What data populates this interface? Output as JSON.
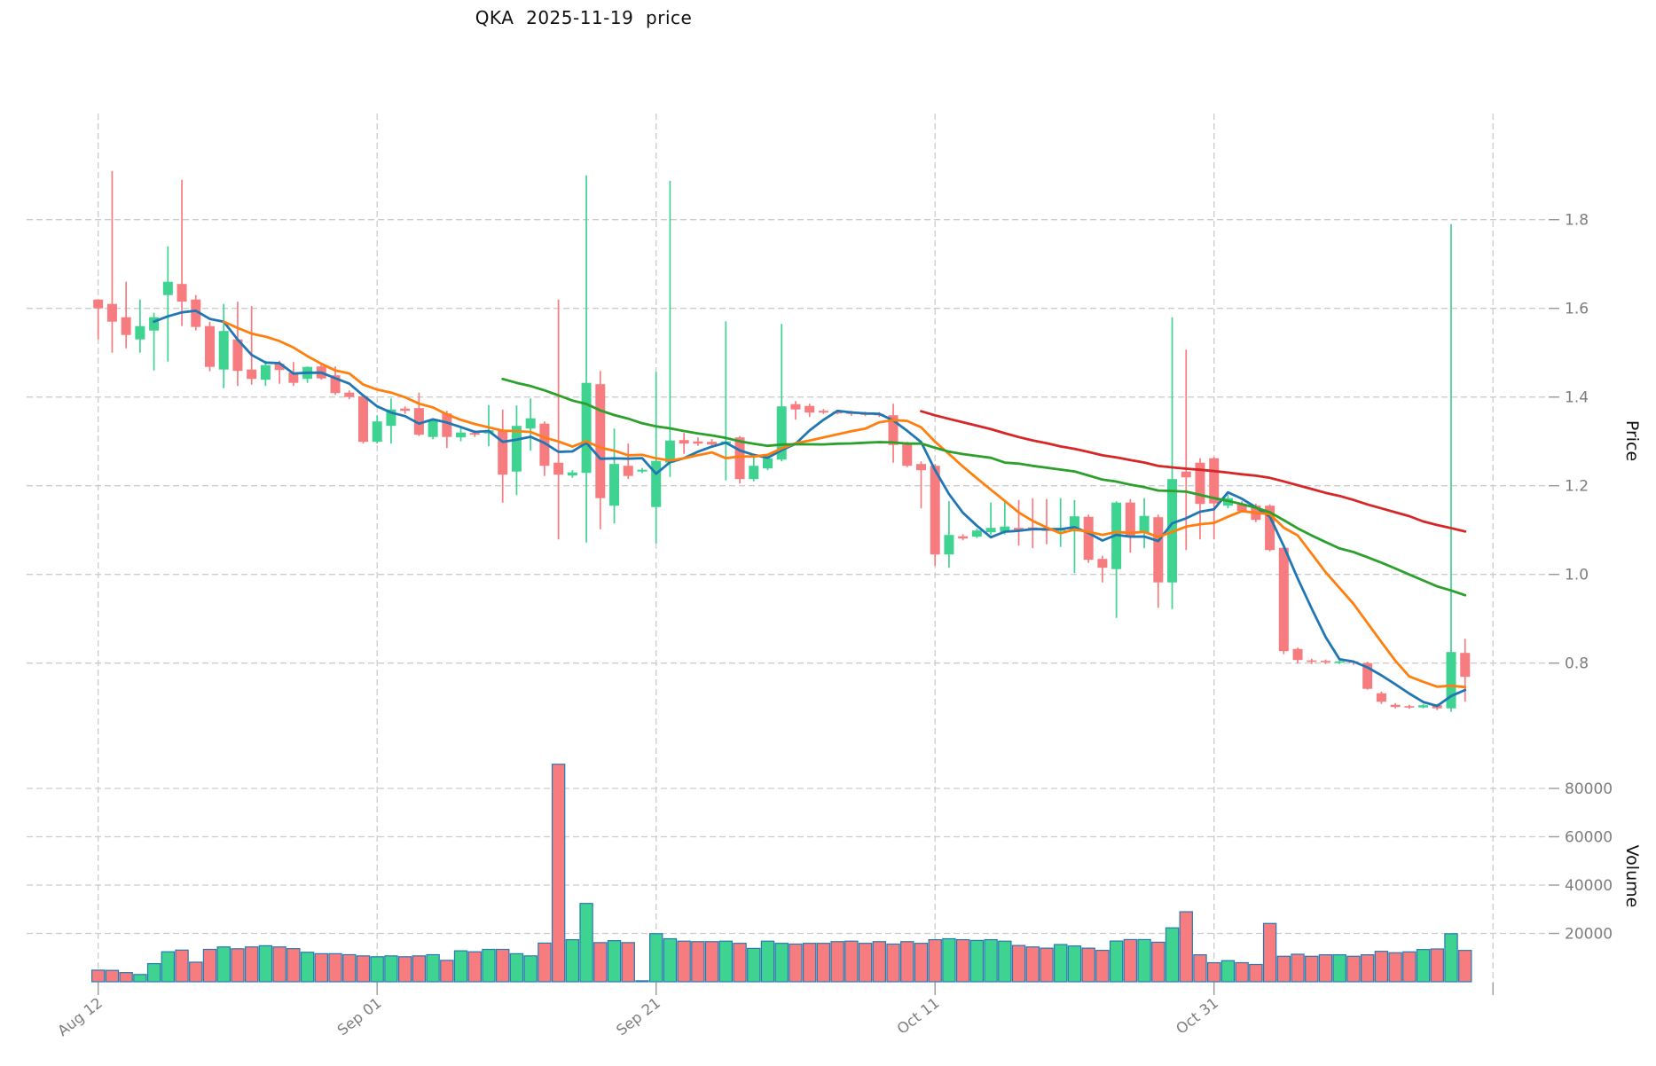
{
  "title": "QKA  2025-11-19  price",
  "chart_data": {
    "type": "candlestick",
    "title": "QKA  2025-11-19  price",
    "legend_position": "none",
    "grid": true,
    "price_axis": {
      "label": "Price",
      "side": "right",
      "ticks": [
        1.8,
        1.6,
        1.4,
        1.2,
        1.0,
        0.8
      ],
      "range": [
        0.65,
        1.95
      ]
    },
    "volume_axis": {
      "label": "Volume",
      "side": "right",
      "ticks": [
        20000,
        40000,
        60000,
        80000
      ],
      "range": [
        0,
        95000
      ]
    },
    "x_ticks": [
      {
        "index": 0,
        "label": "Aug 12"
      },
      {
        "index": 20,
        "label": "Sep 01"
      },
      {
        "index": 40,
        "label": "Sep 21"
      },
      {
        "index": 60,
        "label": "Oct 11"
      },
      {
        "index": 80,
        "label": "Oct 31"
      },
      {
        "index": 100,
        "label": ""
      }
    ],
    "ma_lines": [
      {
        "name": "MA5",
        "window": 5,
        "color": "#1f77b4"
      },
      {
        "name": "MA10",
        "window": 10,
        "color": "#ff7f0e"
      },
      {
        "name": "MA30",
        "window": 30,
        "color": "#2ca02c"
      },
      {
        "name": "MA60",
        "window": 60,
        "color": "#d62728"
      }
    ],
    "colors": {
      "up": "#3fd391",
      "down": "#f67c80",
      "volume_edge": "#2779b0",
      "grid": "#cccccc",
      "tick_label": "#7d7d7d",
      "title": "#111111"
    },
    "columns": [
      "date",
      "open",
      "high",
      "low",
      "close",
      "volume"
    ],
    "candles": [
      [
        "Aug 12",
        1.62,
        1.62,
        1.53,
        1.6,
        4800
      ],
      [
        "Aug 13",
        1.61,
        1.91,
        1.5,
        1.57,
        4700
      ],
      [
        "Aug 14",
        1.58,
        1.66,
        1.51,
        1.54,
        3800
      ],
      [
        "Aug 15",
        1.53,
        1.62,
        1.5,
        1.56,
        3000
      ],
      [
        "Aug 16",
        1.55,
        1.59,
        1.46,
        1.58,
        7500
      ],
      [
        "Aug 17",
        1.63,
        1.74,
        1.48,
        1.66,
        12400
      ],
      [
        "Aug 18",
        1.655,
        1.89,
        1.56,
        1.615,
        13100
      ],
      [
        "Aug 19",
        1.62,
        1.63,
        1.55,
        1.558,
        8100
      ],
      [
        "Aug 20",
        1.56,
        1.57,
        1.458,
        1.468,
        13400
      ],
      [
        "Aug 21",
        1.462,
        1.61,
        1.42,
        1.549,
        14400
      ],
      [
        "Aug 22",
        1.53,
        1.615,
        1.425,
        1.459,
        13650
      ],
      [
        "Aug 23",
        1.462,
        1.605,
        1.428,
        1.441,
        14400
      ],
      [
        "Aug 24",
        1.439,
        1.482,
        1.425,
        1.472,
        14900
      ],
      [
        "Aug 25",
        1.475,
        1.482,
        1.43,
        1.461,
        14400
      ],
      [
        "Aug 26",
        1.455,
        1.479,
        1.425,
        1.432,
        13700
      ],
      [
        "Aug 27",
        1.441,
        1.469,
        1.432,
        1.468,
        12200
      ],
      [
        "Aug 28",
        1.469,
        1.475,
        1.439,
        1.442,
        11600
      ],
      [
        "Aug 29",
        1.449,
        1.469,
        1.405,
        1.409,
        11600
      ],
      [
        "Aug 30",
        1.41,
        1.415,
        1.395,
        1.4,
        11200
      ],
      [
        "Aug 31",
        1.402,
        1.405,
        1.295,
        1.299,
        10700
      ],
      [
        "Sep 01",
        1.299,
        1.359,
        1.295,
        1.345,
        10350
      ],
      [
        "Sep 02",
        1.335,
        1.397,
        1.295,
        1.372,
        10700
      ],
      [
        "Sep 03",
        1.374,
        1.379,
        1.362,
        1.369,
        10350
      ],
      [
        "Sep 04",
        1.375,
        1.41,
        1.312,
        1.315,
        10700
      ],
      [
        "Sep 05",
        1.31,
        1.352,
        1.305,
        1.347,
        11200
      ],
      [
        "Sep 06",
        1.363,
        1.369,
        1.285,
        1.31,
        8850
      ],
      [
        "Sep 07",
        1.309,
        1.329,
        1.3,
        1.32,
        12800
      ],
      [
        "Sep 08",
        1.319,
        1.325,
        1.31,
        1.315,
        12400
      ],
      [
        "Sep 09",
        1.318,
        1.382,
        1.289,
        1.325,
        13400
      ],
      [
        "Sep 10",
        1.325,
        1.372,
        1.162,
        1.225,
        13400
      ],
      [
        "Sep 11",
        1.232,
        1.381,
        1.179,
        1.335,
        11600
      ],
      [
        "Sep 12",
        1.329,
        1.397,
        1.279,
        1.352,
        10700
      ],
      [
        "Sep 13",
        1.34,
        1.345,
        1.222,
        1.245,
        16000
      ],
      [
        "Sep 14",
        1.252,
        1.62,
        1.079,
        1.225,
        90000
      ],
      [
        "Sep 15",
        1.223,
        1.235,
        1.218,
        1.23,
        17400
      ],
      [
        "Sep 16",
        1.229,
        1.9,
        1.072,
        1.432,
        32400
      ],
      [
        "Sep 17",
        1.429,
        1.459,
        1.102,
        1.172,
        16200
      ],
      [
        "Sep 18",
        1.155,
        1.329,
        1.115,
        1.249,
        17000
      ],
      [
        "Sep 19",
        1.245,
        1.295,
        1.215,
        1.222,
        16200
      ],
      [
        "Sep 20",
        1.232,
        1.24,
        1.228,
        1.236,
        400
      ],
      [
        "Sep 21",
        1.152,
        1.457,
        1.07,
        1.256,
        19900
      ],
      [
        "Sep 22",
        1.252,
        1.888,
        1.22,
        1.302,
        17800
      ],
      [
        "Sep 23",
        1.303,
        1.319,
        1.272,
        1.295,
        16800
      ],
      [
        "Sep 24",
        1.3,
        1.309,
        1.29,
        1.295,
        16600
      ],
      [
        "Sep 25",
        1.299,
        1.305,
        1.288,
        1.293,
        16600
      ],
      [
        "Sep 26",
        1.295,
        1.571,
        1.212,
        1.3,
        16800
      ],
      [
        "Sep 27",
        1.309,
        1.312,
        1.205,
        1.215,
        15900
      ],
      [
        "Sep 28",
        1.215,
        1.269,
        1.21,
        1.245,
        13800
      ],
      [
        "Sep 29",
        1.239,
        1.27,
        1.235,
        1.262,
        16800
      ],
      [
        "Sep 30",
        1.259,
        1.565,
        1.255,
        1.379,
        15900
      ],
      [
        "Oct 01",
        1.384,
        1.391,
        1.349,
        1.372,
        15600
      ],
      [
        "Oct 02",
        1.38,
        1.385,
        1.355,
        1.365,
        15900
      ],
      [
        "Oct 03",
        1.369,
        1.373,
        1.362,
        1.365,
        15900
      ],
      [
        "Oct 04",
        1.367,
        1.371,
        1.361,
        1.363,
        16600
      ],
      [
        "Oct 05",
        1.365,
        1.369,
        1.358,
        1.362,
        16800
      ],
      [
        "Oct 06",
        1.363,
        1.367,
        1.357,
        1.361,
        15900
      ],
      [
        "Oct 07",
        1.362,
        1.366,
        1.355,
        1.359,
        16600
      ],
      [
        "Oct 08",
        1.359,
        1.385,
        1.252,
        1.292,
        15600
      ],
      [
        "Oct 09",
        1.295,
        1.299,
        1.242,
        1.245,
        16600
      ],
      [
        "Oct 10",
        1.249,
        1.255,
        1.149,
        1.235,
        15900
      ],
      [
        "Oct 11",
        1.245,
        1.249,
        1.019,
        1.045,
        17400
      ],
      [
        "Oct 12",
        1.045,
        1.165,
        1.015,
        1.089,
        17800
      ],
      [
        "Oct 13",
        1.086,
        1.091,
        1.077,
        1.081,
        17400
      ],
      [
        "Oct 14",
        1.085,
        1.103,
        1.082,
        1.099,
        17100
      ],
      [
        "Oct 15",
        1.095,
        1.162,
        1.09,
        1.105,
        17400
      ],
      [
        "Oct 16",
        1.096,
        1.164,
        1.09,
        1.108,
        16800
      ],
      [
        "Oct 17",
        1.105,
        1.168,
        1.065,
        1.099,
        15000
      ],
      [
        "Oct 18",
        1.106,
        1.172,
        1.059,
        1.1,
        14400
      ],
      [
        "Oct 19",
        1.103,
        1.17,
        1.068,
        1.098,
        13900
      ],
      [
        "Oct 20",
        1.098,
        1.172,
        1.062,
        1.105,
        15400
      ],
      [
        "Oct 21",
        1.097,
        1.168,
        1.003,
        1.131,
        14800
      ],
      [
        "Oct 22",
        1.13,
        1.135,
        1.026,
        1.033,
        13900
      ],
      [
        "Oct 23",
        1.035,
        1.042,
        0.982,
        1.015,
        13000
      ],
      [
        "Oct 24",
        1.012,
        1.165,
        0.902,
        1.162,
        16850
      ],
      [
        "Oct 25",
        1.162,
        1.17,
        1.049,
        1.085,
        17450
      ],
      [
        "Oct 26",
        1.095,
        1.172,
        1.059,
        1.132,
        17450
      ],
      [
        "Oct 27",
        1.129,
        1.135,
        0.925,
        0.982,
        16360
      ],
      [
        "Oct 28",
        0.982,
        1.58,
        0.922,
        1.215,
        22300
      ],
      [
        "Oct 29",
        1.232,
        1.507,
        1.055,
        1.219,
        28970
      ],
      [
        "Oct 30",
        1.252,
        1.262,
        1.079,
        1.159,
        11150
      ],
      [
        "Oct 31",
        1.262,
        1.265,
        1.079,
        1.16,
        7880
      ],
      [
        "Nov 01",
        1.155,
        1.18,
        1.149,
        1.172,
        8730
      ],
      [
        "Nov 02",
        1.158,
        1.165,
        1.14,
        1.143,
        7880
      ],
      [
        "Nov 03",
        1.155,
        1.16,
        1.118,
        1.123,
        7150
      ],
      [
        "Nov 04",
        1.155,
        1.158,
        1.052,
        1.055,
        24120
      ],
      [
        "Nov 05",
        1.06,
        1.062,
        0.82,
        0.827,
        10540
      ],
      [
        "Nov 06",
        0.832,
        0.835,
        0.799,
        0.807,
        11390
      ],
      [
        "Nov 07",
        0.806,
        0.81,
        0.798,
        0.803,
        10540
      ],
      [
        "Nov 08",
        0.805,
        0.808,
        0.798,
        0.802,
        11150
      ],
      [
        "Nov 09",
        0.801,
        0.806,
        0.798,
        0.804,
        11150
      ],
      [
        "Nov 10",
        0.804,
        0.806,
        0.796,
        0.801,
        10540
      ],
      [
        "Nov 11",
        0.8,
        0.803,
        0.74,
        0.742,
        11150
      ],
      [
        "Nov 12",
        0.732,
        0.736,
        0.708,
        0.713,
        12600
      ],
      [
        "Nov 13",
        0.706,
        0.71,
        0.698,
        0.701,
        12000
      ],
      [
        "Nov 14",
        0.703,
        0.706,
        0.697,
        0.7,
        12360
      ],
      [
        "Nov 15",
        0.7,
        0.708,
        0.698,
        0.705,
        13330
      ],
      [
        "Nov 16",
        0.705,
        0.708,
        0.694,
        0.698,
        13570
      ],
      [
        "Nov 17",
        0.698,
        1.79,
        0.69,
        0.825,
        19880
      ],
      [
        "Nov 18",
        0.823,
        0.855,
        0.713,
        0.769,
        12970
      ]
    ]
  }
}
